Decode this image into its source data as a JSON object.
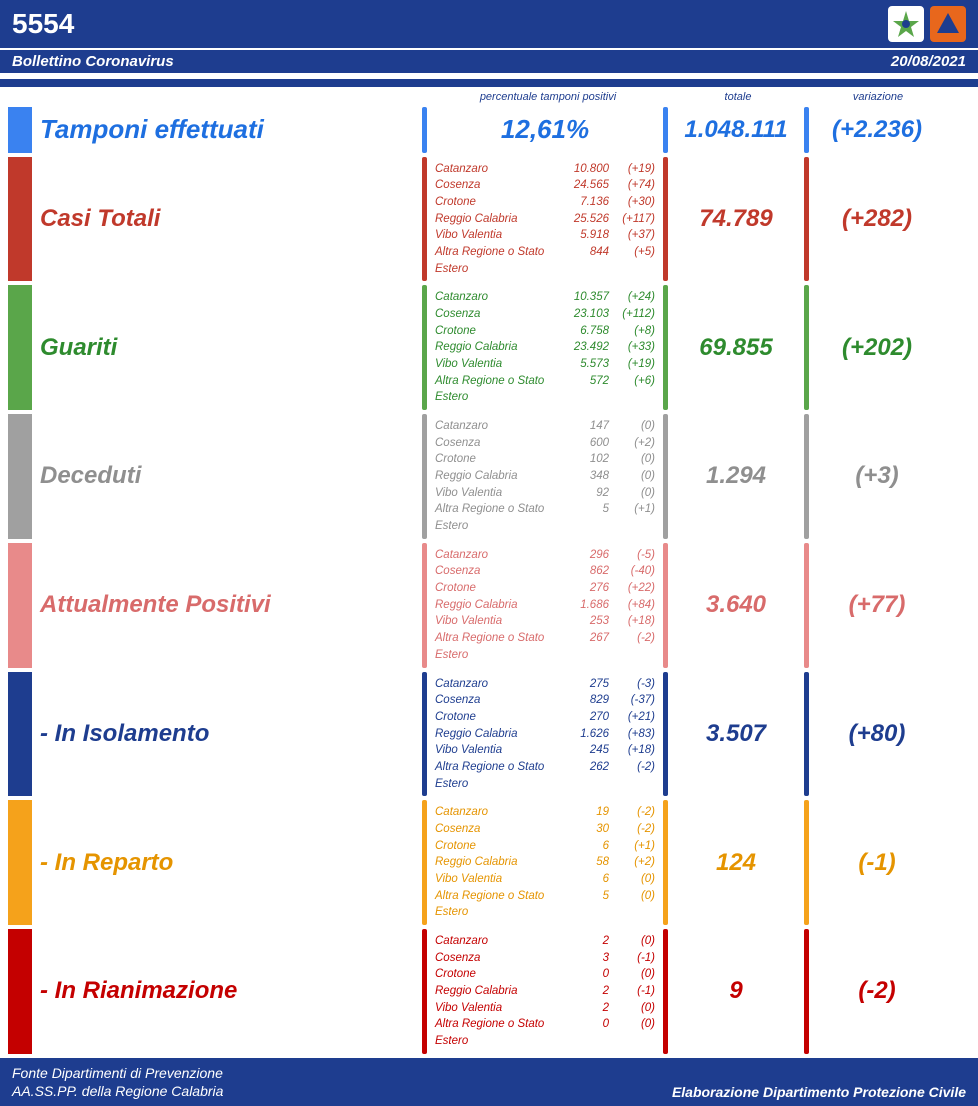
{
  "header": {
    "number": "5554",
    "subtitle": "Bollettino Coronavirus",
    "date": "20/08/2021",
    "bar_color": "#1e3d8f"
  },
  "columns": {
    "c1": "percentuale tamponi positivi",
    "c2": "totale",
    "c3": "variazione"
  },
  "provinces": [
    "Catanzaro",
    "Cosenza",
    "Crotone",
    "Reggio Calabria",
    "Vibo Valentia",
    "Altra Regione o Stato Estero"
  ],
  "rows": [
    {
      "id": "tamponi",
      "label": "Tamponi effettuati",
      "color": "#3a82f0",
      "text_color": "#1e6fe0",
      "pct": "12,61%",
      "total": "1.048.111",
      "delta": "(+2.236)",
      "breakdown": null
    },
    {
      "id": "casi",
      "label": "Casi Totali",
      "color": "#c0392b",
      "text_color": "#c0392b",
      "total": "74.789",
      "delta": "(+282)",
      "breakdown": [
        [
          "10.800",
          "(+19)"
        ],
        [
          "24.565",
          "(+74)"
        ],
        [
          "7.136",
          "(+30)"
        ],
        [
          "25.526",
          "(+117)"
        ],
        [
          "5.918",
          "(+37)"
        ],
        [
          "844",
          "(+5)"
        ]
      ]
    },
    {
      "id": "guariti",
      "label": "Guariti",
      "color": "#5aa64a",
      "text_color": "#2e8b2e",
      "total": "69.855",
      "delta": "(+202)",
      "breakdown": [
        [
          "10.357",
          "(+24)"
        ],
        [
          "23.103",
          "(+112)"
        ],
        [
          "6.758",
          "(+8)"
        ],
        [
          "23.492",
          "(+33)"
        ],
        [
          "5.573",
          "(+19)"
        ],
        [
          "572",
          "(+6)"
        ]
      ]
    },
    {
      "id": "deceduti",
      "label": "Deceduti",
      "color": "#a0a0a0",
      "text_color": "#8f8f8f",
      "total": "1.294",
      "delta": "(+3)",
      "breakdown": [
        [
          "147",
          "(0)"
        ],
        [
          "600",
          "(+2)"
        ],
        [
          "102",
          "(0)"
        ],
        [
          "348",
          "(0)"
        ],
        [
          "92",
          "(0)"
        ],
        [
          "5",
          "(+1)"
        ]
      ]
    },
    {
      "id": "positivi",
      "label": "Attualmente Positivi",
      "color": "#e88a8a",
      "text_color": "#d86b6b",
      "total": "3.640",
      "delta": "(+77)",
      "breakdown": [
        [
          "296",
          "(-5)"
        ],
        [
          "862",
          "(-40)"
        ],
        [
          "276",
          "(+22)"
        ],
        [
          "1.686",
          "(+84)"
        ],
        [
          "253",
          "(+18)"
        ],
        [
          "267",
          "(-2)"
        ]
      ]
    },
    {
      "id": "isolamento",
      "label": "- In Isolamento",
      "color": "#1e3d8f",
      "text_color": "#1e3d8f",
      "total": "3.507",
      "delta": "(+80)",
      "breakdown": [
        [
          "275",
          "(-3)"
        ],
        [
          "829",
          "(-37)"
        ],
        [
          "270",
          "(+21)"
        ],
        [
          "1.626",
          "(+83)"
        ],
        [
          "245",
          "(+18)"
        ],
        [
          "262",
          "(-2)"
        ]
      ]
    },
    {
      "id": "reparto",
      "label": "- In Reparto",
      "color": "#f5a21b",
      "text_color": "#e59400",
      "total": "124",
      "delta": "(-1)",
      "breakdown": [
        [
          "19",
          "(-2)"
        ],
        [
          "30",
          "(-2)"
        ],
        [
          "6",
          "(+1)"
        ],
        [
          "58",
          "(+2)"
        ],
        [
          "6",
          "(0)"
        ],
        [
          "5",
          "(0)"
        ]
      ]
    },
    {
      "id": "rianimazione",
      "label": "- In Rianimazione",
      "color": "#c40000",
      "text_color": "#c40000",
      "total": "9",
      "delta": "(-2)",
      "breakdown": [
        [
          "2",
          "(0)"
        ],
        [
          "3",
          "(-1)"
        ],
        [
          "0",
          "(0)"
        ],
        [
          "2",
          "(-1)"
        ],
        [
          "2",
          "(0)"
        ],
        [
          "0",
          "(0)"
        ]
      ]
    }
  ],
  "footer": {
    "left1": "Fonte Dipartimenti di Prevenzione",
    "left2": "AA.SS.PP.  della Regione Calabria",
    "right": "Elaborazione Dipartimento Protezione Civile"
  }
}
